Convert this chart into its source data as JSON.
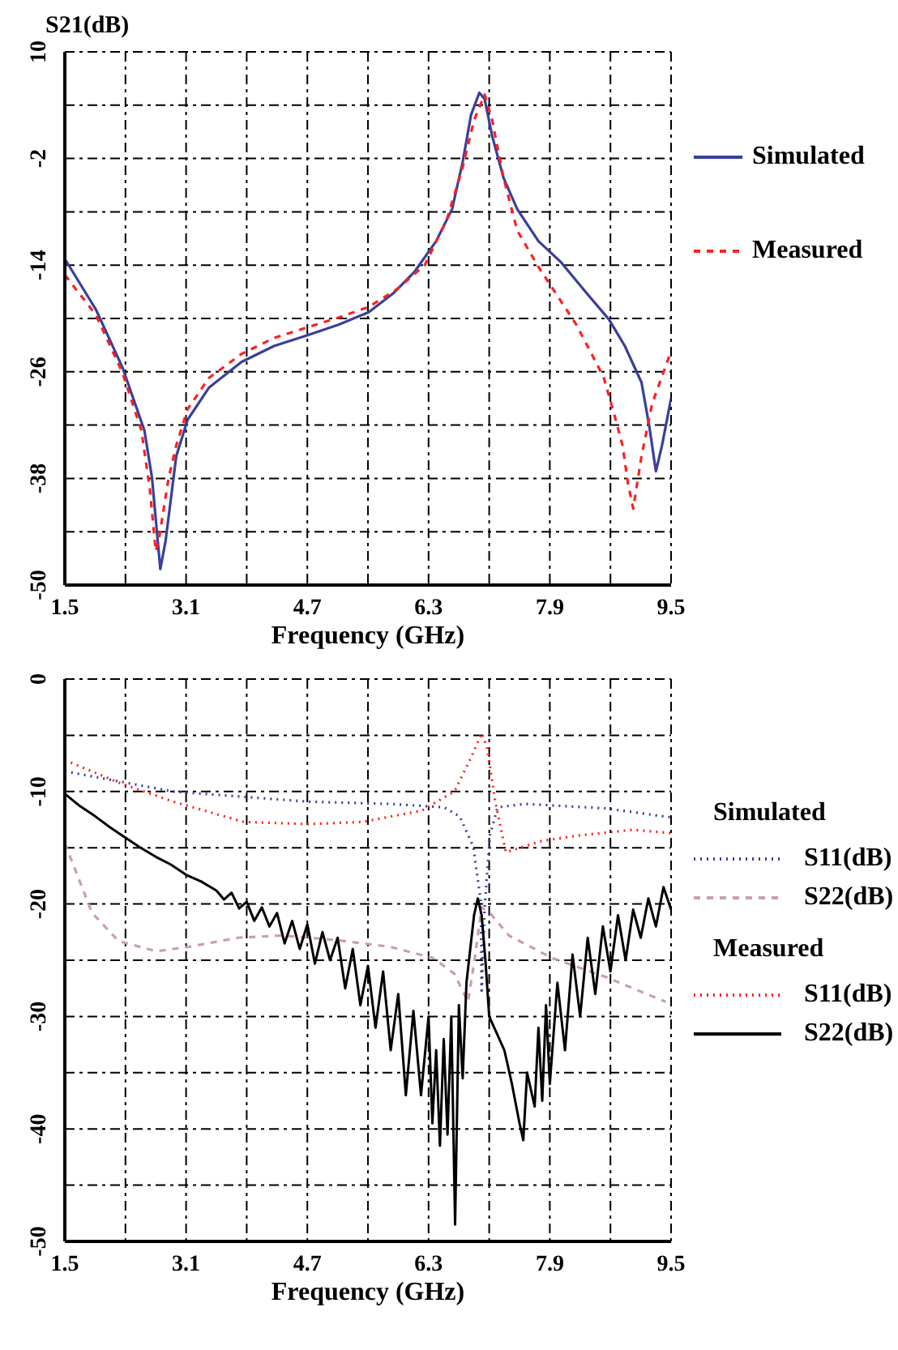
{
  "chart_data": [
    {
      "type": "line",
      "ylabel": "S21(dB)",
      "xlabel": "Frequency (GHz)",
      "xlim": [
        1.5,
        9.5
      ],
      "xticks": [
        1.5,
        {
          "value": 2.3,
          "label": null
        },
        3.1,
        {
          "value": 3.9,
          "label": null
        },
        4.7,
        {
          "value": 5.5,
          "label": null
        },
        6.3,
        {
          "value": 7.1,
          "label": null
        },
        7.9,
        {
          "value": 8.7,
          "label": null
        },
        9.5
      ],
      "ylim": [
        -50,
        10
      ],
      "yticks": [
        -50,
        {
          "value": -44,
          "label": null
        },
        -38,
        {
          "value": -32,
          "label": null
        },
        -26,
        {
          "value": -20,
          "label": null
        },
        -14,
        {
          "value": -8,
          "label": null
        },
        -2,
        {
          "value": 4,
          "label": null
        },
        10
      ],
      "grid": true,
      "legend": "right",
      "series": [
        {
          "name": "Simulated",
          "color": "#3a3f9a",
          "line_style": "solid",
          "x": [
            1.5,
            1.91,
            2.26,
            2.55,
            2.65,
            2.7,
            2.76,
            2.83,
            2.97,
            3.12,
            3.4,
            3.83,
            4.26,
            4.7,
            5.11,
            5.51,
            5.83,
            6.11,
            6.4,
            6.61,
            6.75,
            6.86,
            6.97,
            7.04,
            7.14,
            7.29,
            7.47,
            7.75,
            8.04,
            8.39,
            8.68,
            8.89,
            9.11,
            9.21,
            9.3,
            9.38,
            9.5
          ],
          "values": [
            -13.3,
            -19,
            -25.5,
            -32.6,
            -37.9,
            -42.6,
            -48.2,
            -45,
            -35.5,
            -31.4,
            -27.8,
            -24.9,
            -23.1,
            -21.9,
            -20.7,
            -19.3,
            -17.2,
            -14.8,
            -11.3,
            -7.7,
            -2.4,
            2.9,
            5.4,
            4.7,
            0.5,
            -4.2,
            -7.7,
            -11.3,
            -13.6,
            -17.2,
            -20.1,
            -23.1,
            -27.2,
            -32,
            -37.2,
            -34.3,
            -29
          ]
        },
        {
          "name": "Measured",
          "color": "#ff2020",
          "line_style": "dashed",
          "x": [
            1.5,
            1.91,
            2.26,
            2.51,
            2.62,
            2.7,
            2.75,
            2.87,
            2.97,
            3.12,
            3.4,
            3.83,
            4.26,
            4.7,
            5.11,
            5.51,
            5.9,
            6.25,
            6.54,
            6.75,
            6.9,
            7.04,
            7.14,
            7.29,
            7.47,
            7.75,
            8.25,
            8.61,
            8.75,
            8.86,
            8.93,
            9.0,
            9.11,
            9.25,
            9.5
          ],
          "values": [
            -15.1,
            -19.6,
            -26.1,
            -32.6,
            -39.1,
            -46.2,
            -44.4,
            -37.9,
            -34.3,
            -30.2,
            -26.7,
            -24,
            -22.2,
            -21,
            -19.9,
            -18.7,
            -16.6,
            -14,
            -8.9,
            -3,
            2.3,
            5.2,
            2.3,
            -4.2,
            -10.1,
            -14.2,
            -20.7,
            -26.6,
            -30.8,
            -34.3,
            -38.5,
            -41.4,
            -35.5,
            -29.6,
            -23.7
          ]
        }
      ]
    },
    {
      "type": "line",
      "xlabel": "Frequency (GHz)",
      "xlim": [
        1.5,
        9.5
      ],
      "xticks": [
        1.5,
        {
          "value": 2.3,
          "label": null
        },
        3.1,
        {
          "value": 3.9,
          "label": null
        },
        4.7,
        {
          "value": 5.5,
          "label": null
        },
        6.3,
        {
          "value": 7.1,
          "label": null
        },
        7.9,
        {
          "value": 8.7,
          "label": null
        },
        9.5
      ],
      "ylim": [
        -50,
        0
      ],
      "yticks": [
        -50,
        {
          "value": -45,
          "label": null
        },
        -40,
        {
          "value": -35,
          "label": null
        },
        -30,
        {
          "value": -25,
          "label": null
        },
        -20,
        {
          "value": -15,
          "label": null
        },
        -10,
        {
          "value": -5,
          "label": null
        },
        0
      ],
      "grid": true,
      "legend": "right",
      "annotations": [
        "Simulated",
        "Measured"
      ],
      "series": [
        {
          "name": "S11(dB)",
          "color": "#3a3f9a",
          "line_style": "dotted",
          "x": [
            1.5,
            2.93,
            4.71,
            5.79,
            6.5,
            6.71,
            6.89,
            6.99,
            7.0,
            7.04,
            7.11,
            7.21,
            7.57,
            8.64,
            9.5
          ],
          "values": [
            -8.2,
            -10,
            -10.9,
            -11.1,
            -11.4,
            -12.2,
            -14.9,
            -19.8,
            -27.7,
            -20.3,
            -13.9,
            -11.4,
            -11.1,
            -11.5,
            -12.3
          ]
        },
        {
          "name": "S22(dB)",
          "color": "#c8a0b0",
          "line_style": "dashed",
          "x": [
            1.5,
            1.86,
            2.21,
            2.71,
            3.14,
            3.79,
            4.36,
            5.07,
            5.79,
            6.36,
            6.64,
            6.82,
            6.91,
            7.0,
            7.11,
            7.36,
            7.93,
            8.64,
            9.43
          ],
          "values": [
            -14.6,
            -20.8,
            -23.3,
            -24.2,
            -23.8,
            -23,
            -22.8,
            -23.2,
            -23.8,
            -24.8,
            -26.2,
            -28.7,
            -24.8,
            -20.3,
            -20.8,
            -22.8,
            -24.8,
            -26.5,
            -28.7
          ]
        },
        {
          "name": "S11(dB)",
          "color": "#ff2020",
          "line_style": "dotted",
          "x": [
            1.5,
            2.21,
            2.93,
            3.86,
            4.71,
            5.43,
            6.21,
            6.64,
            6.86,
            7.0,
            7.07,
            7.18,
            7.32,
            7.79,
            8.29,
            9.0,
            9.5
          ],
          "values": [
            -7.2,
            -9.2,
            -10.9,
            -12.7,
            -12.9,
            -12.7,
            -11.7,
            -10,
            -7,
            -4.8,
            -6,
            -10.9,
            -15.4,
            -14.4,
            -13.9,
            -13.4,
            -13.7
          ]
        },
        {
          "name": "S22(dB)",
          "color": "#000000",
          "line_style": "solid",
          "x": [
            1.5,
            1.7,
            1.9,
            2.1,
            2.3,
            2.5,
            2.7,
            2.9,
            3.1,
            3.3,
            3.5,
            3.6,
            3.7,
            3.8,
            3.9,
            4.0,
            4.1,
            4.2,
            4.3,
            4.4,
            4.5,
            4.6,
            4.7,
            4.8,
            4.9,
            5.0,
            5.1,
            5.2,
            5.3,
            5.4,
            5.5,
            5.6,
            5.7,
            5.8,
            5.9,
            6.0,
            6.1,
            6.2,
            6.3,
            6.35,
            6.4,
            6.45,
            6.5,
            6.55,
            6.6,
            6.65,
            6.7,
            6.75,
            6.8,
            6.85,
            6.9,
            6.95,
            7.0,
            7.05,
            7.1,
            7.2,
            7.3,
            7.4,
            7.5,
            7.55,
            7.6,
            7.7,
            7.75,
            7.8,
            7.85,
            7.9,
            8.0,
            8.1,
            8.2,
            8.3,
            8.4,
            8.5,
            8.6,
            8.7,
            8.8,
            8.9,
            9.0,
            9.1,
            9.2,
            9.3,
            9.4,
            9.5
          ],
          "values": [
            -10.2,
            -11.3,
            -12.2,
            -13.2,
            -14.1,
            -15,
            -15.8,
            -16.5,
            -17.4,
            -18,
            -18.8,
            -19.6,
            -19,
            -20.4,
            -19.8,
            -21.5,
            -20.3,
            -22,
            -20.8,
            -23.5,
            -21.5,
            -24,
            -21.8,
            -25.3,
            -22.5,
            -25,
            -23,
            -27.5,
            -24,
            -29,
            -25.5,
            -31,
            -26,
            -33,
            -28,
            -37,
            -29.5,
            -37,
            -30,
            -39.5,
            -33,
            -41.5,
            -32,
            -40.5,
            -30,
            -48.5,
            -29,
            -35.5,
            -27,
            -24,
            -21,
            -19.5,
            -21,
            -25,
            -30,
            -31.5,
            -33,
            -36,
            -39.5,
            -41,
            -35,
            -38,
            -31,
            -37.5,
            -29,
            -36,
            -27,
            -33,
            -24.5,
            -30,
            -23,
            -28,
            -22,
            -26,
            -21,
            -25,
            -20.5,
            -23,
            -19.5,
            -22,
            -18.5,
            -20.5
          ]
        }
      ]
    }
  ]
}
